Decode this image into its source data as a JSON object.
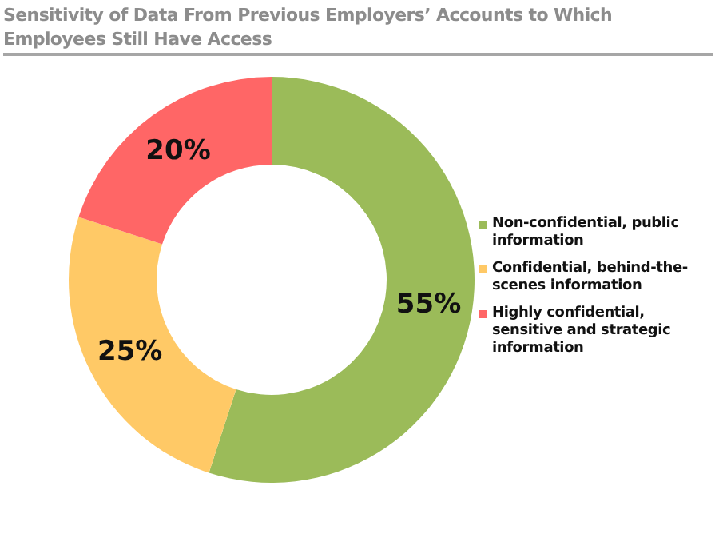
{
  "chart_data": {
    "type": "donut",
    "title": "Sensitivity of Data From Previous Employers’ Accounts to Which Employees Still Have Access",
    "categories": [
      "Non-confidential, public information",
      "Confidential, behind-the-scenes information",
      "Highly confidential, sensitive and strategic information"
    ],
    "values": [
      55,
      25,
      20
    ],
    "colors": [
      "#9bbb59",
      "#ffc966",
      "#ff6666"
    ],
    "value_labels": [
      "55%",
      "25%",
      "20%"
    ],
    "legend": "right"
  }
}
